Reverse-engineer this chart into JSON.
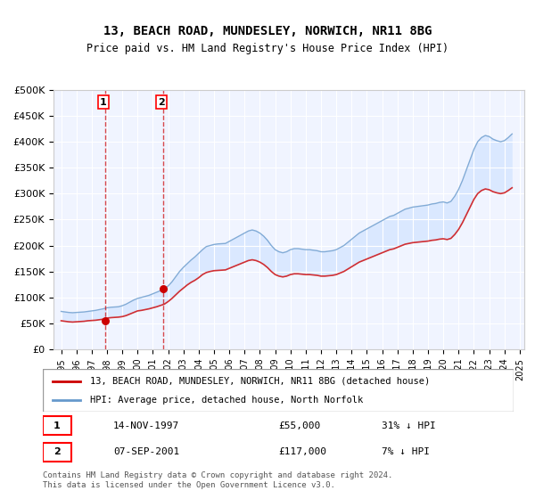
{
  "title": "13, BEACH ROAD, MUNDESLEY, NORWICH, NR11 8BG",
  "subtitle": "Price paid vs. HM Land Registry's House Price Index (HPI)",
  "legend_line1": "13, BEACH ROAD, MUNDESLEY, NORWICH, NR11 8BG (detached house)",
  "legend_line2": "HPI: Average price, detached house, North Norfolk",
  "transaction1_date": "14-NOV-1997",
  "transaction1_price": 55000,
  "transaction1_label": "31% ↓ HPI",
  "transaction2_date": "07-SEP-2001",
  "transaction2_price": 117000,
  "transaction2_label": "7% ↓ HPI",
  "footnote": "Contains HM Land Registry data © Crown copyright and database right 2024.\nThis data is licensed under the Open Government Licence v3.0.",
  "price_line_color": "#cc0000",
  "hpi_line_color": "#6699cc",
  "hpi_fill_color": "#cce0ff",
  "dashed_line_color": "#cc0000",
  "background_color": "#ffffff",
  "plot_bg_color": "#f0f4ff",
  "ylim": [
    0,
    500000
  ],
  "yticks": [
    0,
    50000,
    100000,
    150000,
    200000,
    250000,
    300000,
    350000,
    400000,
    450000,
    500000
  ],
  "x_start_year": 1995,
  "x_end_year": 2025,
  "hpi_data": {
    "years": [
      1995.0,
      1995.25,
      1995.5,
      1995.75,
      1996.0,
      1996.25,
      1996.5,
      1996.75,
      1997.0,
      1997.25,
      1997.5,
      1997.75,
      1998.0,
      1998.25,
      1998.5,
      1998.75,
      1999.0,
      1999.25,
      1999.5,
      1999.75,
      2000.0,
      2000.25,
      2000.5,
      2000.75,
      2001.0,
      2001.25,
      2001.5,
      2001.75,
      2002.0,
      2002.25,
      2002.5,
      2002.75,
      2003.0,
      2003.25,
      2003.5,
      2003.75,
      2004.0,
      2004.25,
      2004.5,
      2004.75,
      2005.0,
      2005.25,
      2005.5,
      2005.75,
      2006.0,
      2006.25,
      2006.5,
      2006.75,
      2007.0,
      2007.25,
      2007.5,
      2007.75,
      2008.0,
      2008.25,
      2008.5,
      2008.75,
      2009.0,
      2009.25,
      2009.5,
      2009.75,
      2010.0,
      2010.25,
      2010.5,
      2010.75,
      2011.0,
      2011.25,
      2011.5,
      2011.75,
      2012.0,
      2012.25,
      2012.5,
      2012.75,
      2013.0,
      2013.25,
      2013.5,
      2013.75,
      2014.0,
      2014.25,
      2014.5,
      2014.75,
      2015.0,
      2015.25,
      2015.5,
      2015.75,
      2016.0,
      2016.25,
      2016.5,
      2016.75,
      2017.0,
      2017.25,
      2017.5,
      2017.75,
      2018.0,
      2018.25,
      2018.5,
      2018.75,
      2019.0,
      2019.25,
      2019.5,
      2019.75,
      2020.0,
      2020.25,
      2020.5,
      2020.75,
      2021.0,
      2021.25,
      2021.5,
      2021.75,
      2022.0,
      2022.25,
      2022.5,
      2022.75,
      2023.0,
      2023.25,
      2023.5,
      2023.75,
      2024.0,
      2024.25,
      2024.5
    ],
    "values": [
      73000,
      72000,
      71000,
      70500,
      71000,
      71500,
      72000,
      73000,
      74000,
      75000,
      76500,
      78000,
      80000,
      81000,
      81500,
      82000,
      84000,
      87000,
      91000,
      95000,
      98000,
      100000,
      102000,
      104000,
      107000,
      110000,
      113000,
      116000,
      122000,
      130000,
      140000,
      150000,
      158000,
      165000,
      172000,
      178000,
      185000,
      192000,
      198000,
      200000,
      202000,
      203000,
      203500,
      204000,
      208000,
      212000,
      216000,
      220000,
      224000,
      228000,
      230000,
      228000,
      224000,
      218000,
      210000,
      200000,
      192000,
      188000,
      186000,
      188000,
      192000,
      194000,
      194000,
      193000,
      192000,
      192000,
      191000,
      190000,
      188000,
      188000,
      189000,
      190000,
      192000,
      196000,
      200000,
      206000,
      212000,
      218000,
      224000,
      228000,
      232000,
      236000,
      240000,
      244000,
      248000,
      252000,
      256000,
      258000,
      262000,
      266000,
      270000,
      272000,
      274000,
      275000,
      276000,
      277000,
      278000,
      280000,
      281000,
      283000,
      284000,
      282000,
      285000,
      295000,
      308000,
      325000,
      345000,
      365000,
      385000,
      400000,
      408000,
      412000,
      410000,
      405000,
      402000,
      400000,
      402000,
      408000,
      415000
    ]
  },
  "hpi_scaled_data": {
    "years": [
      1995.0,
      1995.25,
      1995.5,
      1995.75,
      1996.0,
      1996.25,
      1996.5,
      1996.75,
      1997.0,
      1997.25,
      1997.5,
      1997.75,
      1998.0,
      1998.25,
      1998.5,
      1998.75,
      1999.0,
      1999.25,
      1999.5,
      1999.75,
      2000.0,
      2000.25,
      2000.5,
      2000.75,
      2001.0,
      2001.25,
      2001.5,
      2001.75,
      2002.0,
      2002.25,
      2002.5,
      2002.75,
      2003.0,
      2003.25,
      2003.5,
      2003.75,
      2004.0,
      2004.25,
      2004.5,
      2004.75,
      2005.0,
      2005.25,
      2005.5,
      2005.75,
      2006.0,
      2006.25,
      2006.5,
      2006.75,
      2007.0,
      2007.25,
      2007.5,
      2007.75,
      2008.0,
      2008.25,
      2008.5,
      2008.75,
      2009.0,
      2009.25,
      2009.5,
      2009.75,
      2010.0,
      2010.25,
      2010.5,
      2010.75,
      2011.0,
      2011.25,
      2011.5,
      2011.75,
      2012.0,
      2012.25,
      2012.5,
      2012.75,
      2013.0,
      2013.25,
      2013.5,
      2013.75,
      2014.0,
      2014.25,
      2014.5,
      2014.75,
      2015.0,
      2015.25,
      2015.5,
      2015.75,
      2016.0,
      2016.25,
      2016.5,
      2016.75,
      2017.0,
      2017.25,
      2017.5,
      2017.75,
      2018.0,
      2018.25,
      2018.5,
      2018.75,
      2019.0,
      2019.25,
      2019.5,
      2019.75,
      2020.0,
      2020.25,
      2020.5,
      2020.75,
      2021.0,
      2021.25,
      2021.5,
      2021.75,
      2022.0,
      2022.25,
      2022.5,
      2022.75,
      2023.0,
      2023.25,
      2023.5,
      2023.75,
      2024.0,
      2024.25,
      2024.5
    ],
    "values": [
      55000,
      54000,
      53000,
      52500,
      53000,
      53500,
      54000,
      55000,
      55500,
      56000,
      57000,
      58000,
      60000,
      61000,
      61500,
      62000,
      63000,
      65000,
      68000,
      71000,
      74000,
      75000,
      76500,
      78000,
      80000,
      82000,
      84500,
      87000,
      92000,
      98000,
      105000,
      112000,
      118000,
      124000,
      129000,
      133000,
      138000,
      144000,
      148000,
      150000,
      151500,
      152000,
      152500,
      153000,
      156000,
      159000,
      162000,
      165000,
      168000,
      171000,
      172500,
      171000,
      168000,
      163500,
      157500,
      150000,
      144000,
      141000,
      139500,
      141000,
      144000,
      145500,
      145500,
      144750,
      144000,
      144000,
      143250,
      142500,
      141000,
      141000,
      141750,
      142500,
      144000,
      147000,
      150000,
      154500,
      159000,
      163500,
      168000,
      171000,
      174000,
      177000,
      180000,
      183000,
      186000,
      189000,
      192000,
      193500,
      196500,
      199500,
      202500,
      204000,
      205500,
      206250,
      207000,
      207750,
      208500,
      210000,
      210750,
      212250,
      213000,
      211500,
      213750,
      221250,
      231000,
      243750,
      258750,
      273750,
      288750,
      300000,
      306000,
      309000,
      307500,
      303750,
      301500,
      300000,
      301500,
      306000,
      311250
    ]
  },
  "transactions": [
    {
      "year": 1997.87,
      "price": 55000,
      "label": "1"
    },
    {
      "year": 2001.68,
      "price": 117000,
      "label": "2"
    }
  ]
}
